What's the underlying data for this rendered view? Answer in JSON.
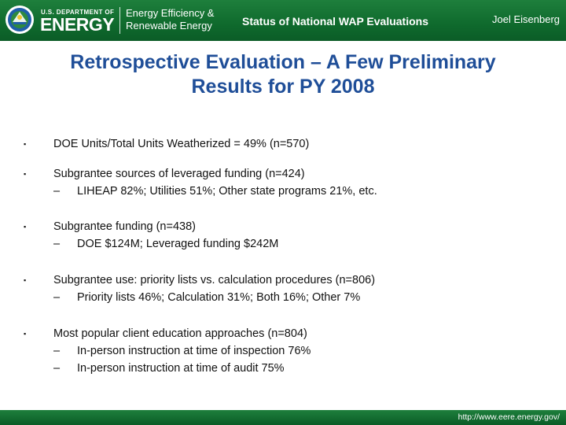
{
  "header": {
    "doe_line1": "U.S. DEPARTMENT OF",
    "doe_line2": "ENERGY",
    "eere_line1": "Energy Efficiency &",
    "eere_line2": "Renewable Energy",
    "title": "Status of National WAP Evaluations",
    "author": "Joel  Eisenberg"
  },
  "slide": {
    "title_line1": "Retrospective Evaluation – A Few Preliminary",
    "title_line2": "Results for PY 2008",
    "bullets": [
      {
        "text": "DOE Units/Total Units Weatherized = 49% (n=570)",
        "subs": []
      },
      {
        "text": "Subgrantee sources of leveraged funding (n=424)",
        "subs": [
          "LIHEAP 82%; Utilities 51%; Other state programs 21%, etc."
        ]
      },
      {
        "text": "Subgrantee funding (n=438)",
        "subs": [
          "DOE $124M; Leveraged funding $242M"
        ]
      },
      {
        "text": "Subgrantee use: priority lists vs. calculation procedures (n=806)",
        "subs": [
          "Priority lists 46%; Calculation 31%; Both 16%; Other 7%"
        ]
      },
      {
        "text": "Most popular client education approaches (n=804)",
        "subs": [
          "In-person instruction at time of inspection 76%",
          "In-person instruction at time of audit 75%"
        ]
      }
    ],
    "bullet_mark": "▪",
    "sub_mark": "–"
  },
  "footer": {
    "url": "http://www.eere.energy.gov/"
  },
  "colors": {
    "header_green": "#0f6a2d",
    "title_blue": "#1f4e98"
  }
}
